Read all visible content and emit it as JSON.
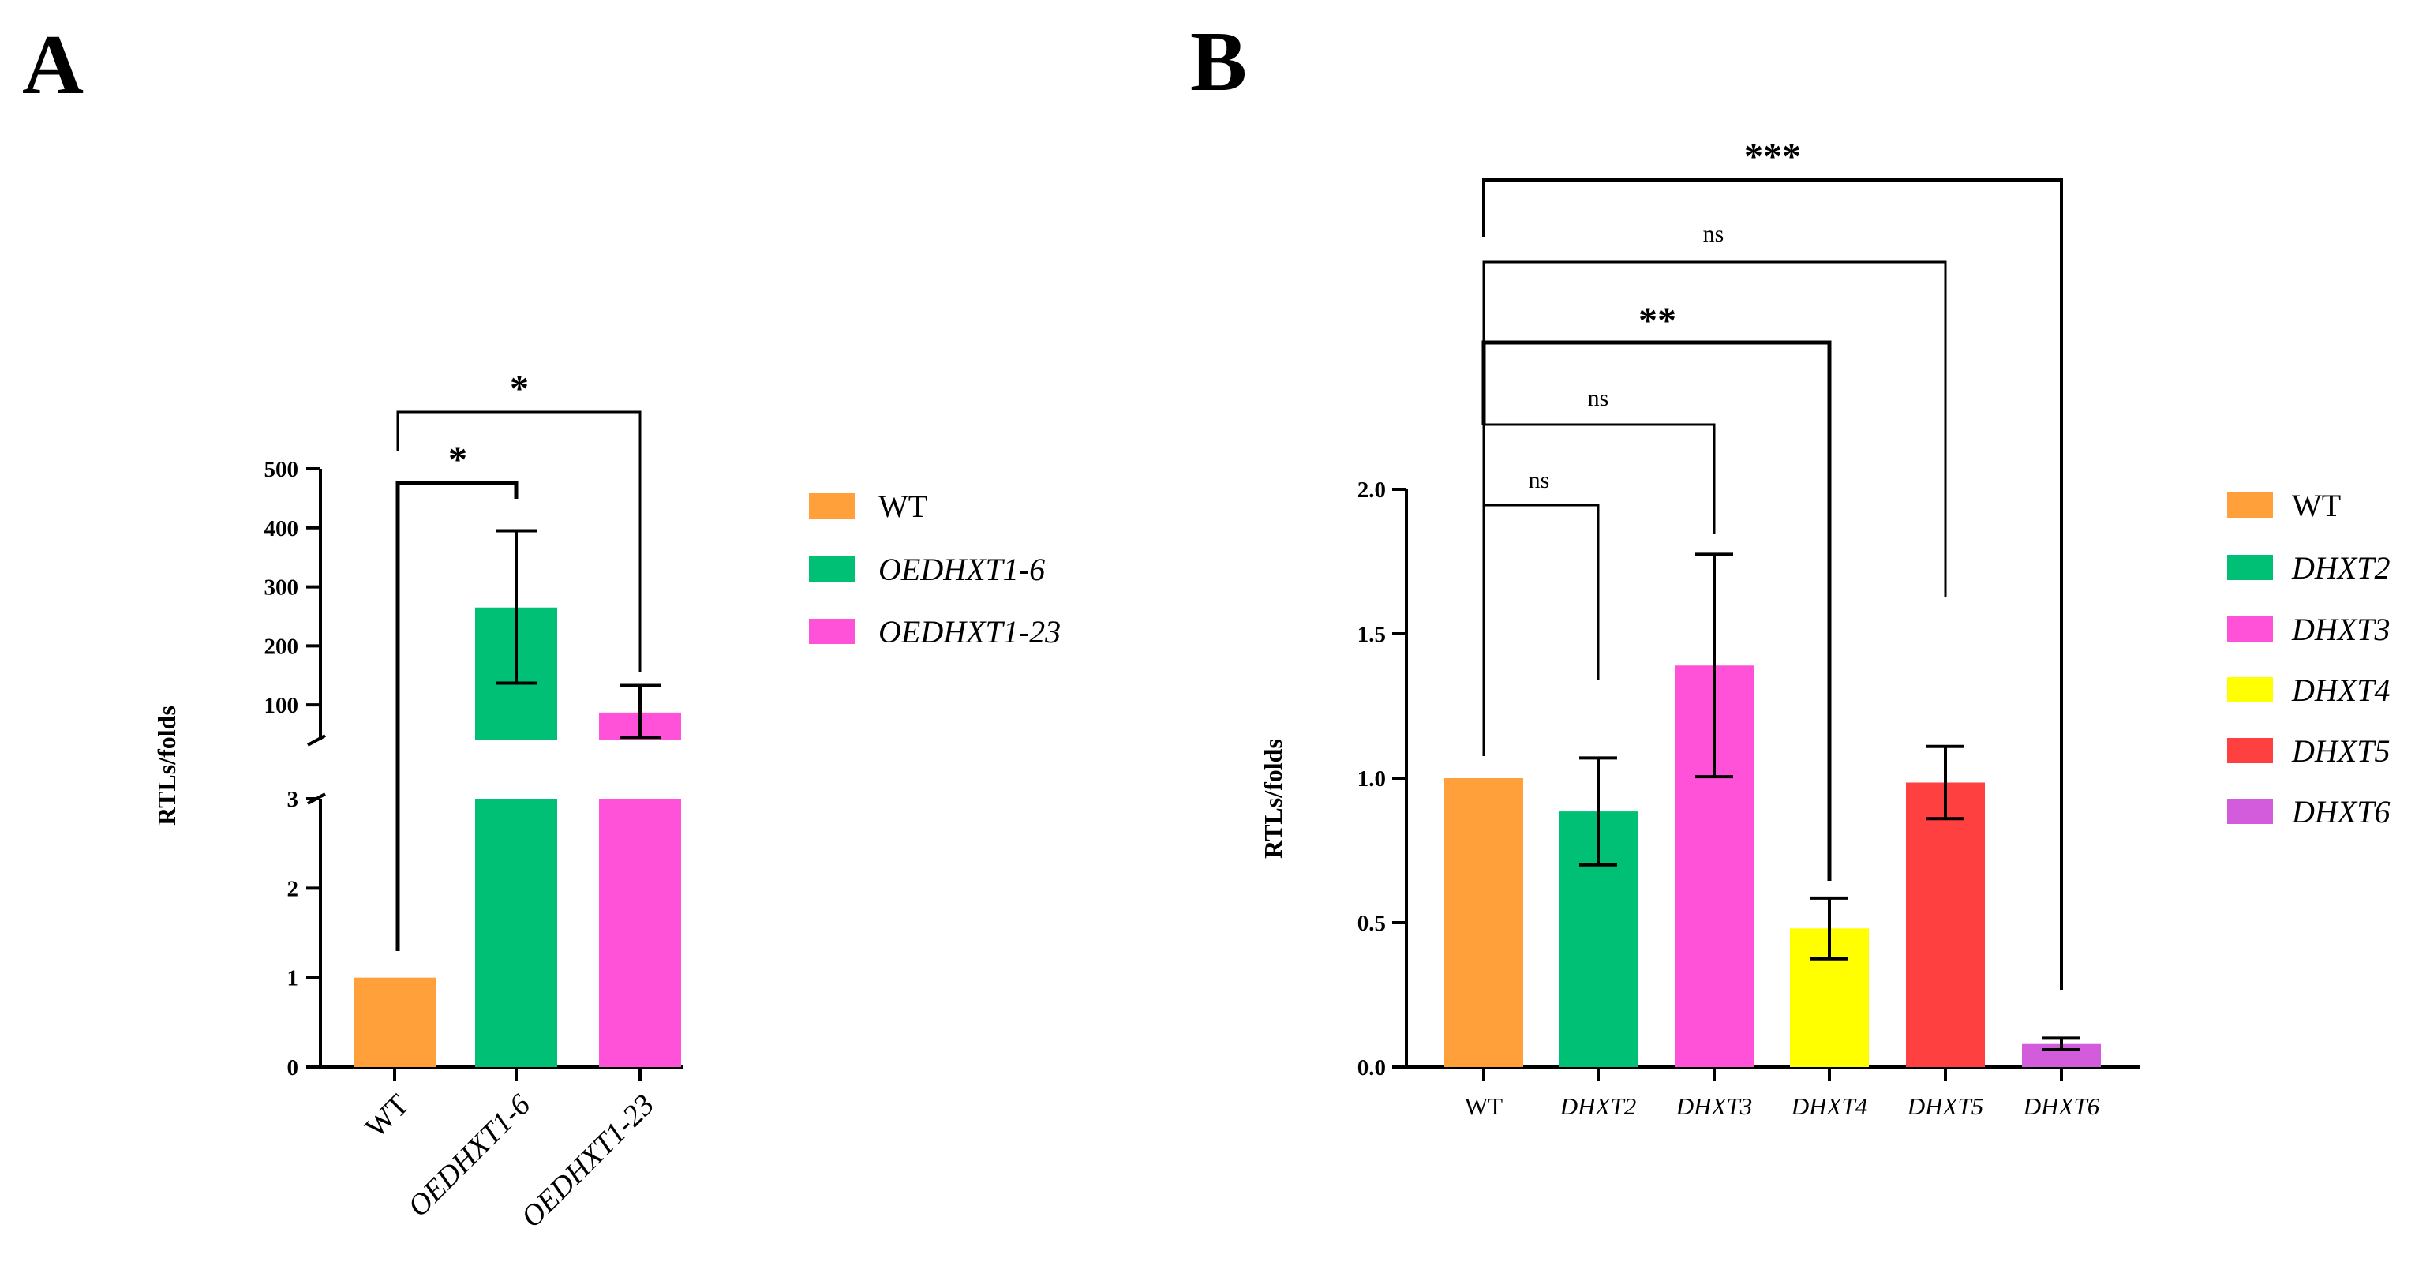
{
  "panels": [
    {
      "label": "A",
      "chart_data": {
        "type": "bar",
        "title": "",
        "xlabel": "",
        "ylabel": "RTLs/folds",
        "categories": [
          "WT",
          "OEDHXT1-6",
          "OEDHXT1-23"
        ],
        "values": [
          1,
          265,
          87
        ],
        "error_low": [
          1,
          137,
          45
        ],
        "error_high": [
          1,
          395,
          133
        ],
        "colors": [
          "#FFA03B",
          "#00C076",
          "#FF52D9"
        ],
        "y_axis_segments": [
          {
            "range": [
              0,
              3
            ],
            "ticks": [
              0,
              1,
              2,
              3
            ]
          },
          {
            "range": [
              40,
              500
            ],
            "ticks": [
              100,
              200,
              300,
              400,
              500
            ]
          }
        ],
        "italic_categories": [
          false,
          true,
          true
        ],
        "legend": [
          "WT",
          "OEDHXT1-6",
          "OEDHXT1-23"
        ],
        "legend_placement": "right",
        "significance": [
          {
            "from": "WT",
            "to": "OEDHXT1-6",
            "label": "*"
          },
          {
            "from": "WT",
            "to": "OEDHXT1-23",
            "label": "*"
          }
        ]
      }
    },
    {
      "label": "B",
      "chart_data": {
        "type": "bar",
        "title": "",
        "xlabel": "",
        "ylabel": "RTLs/folds",
        "categories": [
          "WT",
          "DHXT2",
          "DHXT3",
          "DHXT4",
          "DHXT5",
          "DHXT6"
        ],
        "values": [
          1.0,
          0.885,
          1.39,
          0.48,
          0.985,
          0.08
        ],
        "error_low": [
          1.0,
          0.7,
          1.005,
          0.375,
          0.86,
          0.06
        ],
        "error_high": [
          1.0,
          1.07,
          1.775,
          0.585,
          1.11,
          0.1
        ],
        "colors": [
          "#FFA03B",
          "#00C076",
          "#FF52D9",
          "#FFFF00",
          "#FF4040",
          "#D25CDC"
        ],
        "ylim": [
          0,
          2.0
        ],
        "ticks": [
          "0.0",
          "0.5",
          "1.0",
          "1.5",
          "2.0"
        ],
        "italic_categories": [
          false,
          true,
          true,
          true,
          true,
          true
        ],
        "legend": [
          "WT",
          "DHXT2",
          "DHXT3",
          "DHXT4",
          "DHXT5",
          "DHXT6"
        ],
        "legend_placement": "right",
        "significance": [
          {
            "from": "WT",
            "to": "DHXT2",
            "label": "ns"
          },
          {
            "from": "WT",
            "to": "DHXT3",
            "label": "ns"
          },
          {
            "from": "WT",
            "to": "DHXT4",
            "label": "**"
          },
          {
            "from": "WT",
            "to": "DHXT5",
            "label": "ns"
          },
          {
            "from": "WT",
            "to": "DHXT6",
            "label": "***"
          }
        ]
      }
    }
  ]
}
